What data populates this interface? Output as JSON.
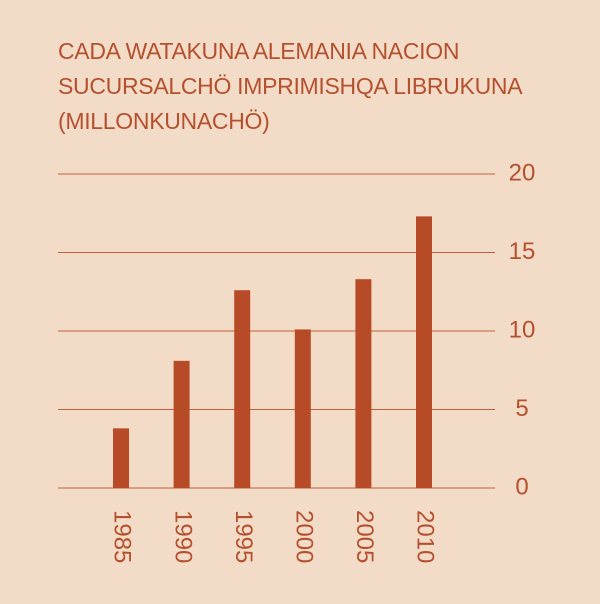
{
  "chart_data": {
    "type": "bar",
    "title": "CADA WATAKUNA ALEMANIA NACION SUCURSALCHÖ IMPRIMISHQA LIBRUKUNA (MILLONKUNACHÖ)",
    "categories": [
      "1985",
      "1990",
      "1995",
      "2000",
      "2005",
      "2010"
    ],
    "values": [
      3.8,
      8.1,
      12.6,
      10.1,
      13.3,
      17.3
    ],
    "color": "#b84b27",
    "ylim": [
      0,
      20
    ],
    "yticks": [
      0,
      5,
      10,
      15,
      20
    ],
    "grid": true
  }
}
